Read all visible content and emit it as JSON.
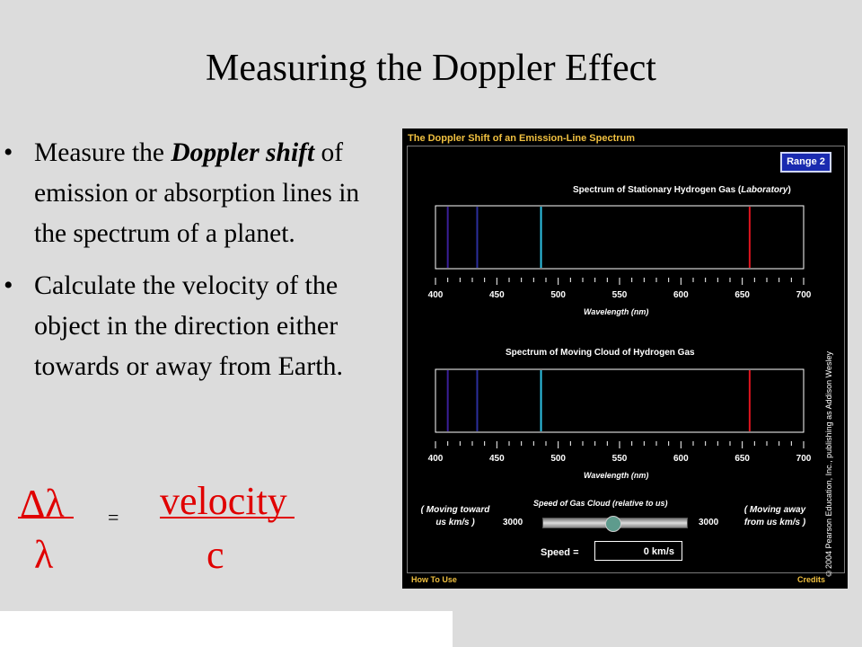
{
  "slide": {
    "title": "Measuring the Doppler Effect",
    "bullet_char": "•",
    "bullet1_pre": "Measure the ",
    "bullet1_emph": "Doppler shift",
    "bullet1_post": " of emission or absorption lines in the spectrum of a planet.",
    "bullet2": "Calculate the velocity of the object in the direction either towards or away from Earth.",
    "formula": {
      "numerator_left": "Δλ",
      "denominator_left": "λ",
      "equals": "=",
      "numerator_right": "velocity",
      "denominator_right": "c"
    }
  },
  "simulation": {
    "title": "The Doppler Shift of an Emission-Line Spectrum",
    "range_button": "Range 2",
    "lab_spectrum_label_pre": "Spectrum of Stationary Hydrogen Gas (",
    "lab_spectrum_label_emph": "Laboratory",
    "lab_spectrum_label_post": ")",
    "moving_spectrum_label": "Spectrum of Moving Cloud of Hydrogen Gas",
    "tick_labels": [
      "400",
      "450",
      "500",
      "550",
      "600",
      "650",
      "700"
    ],
    "axis_label": "Wavelength (nm)",
    "emission_lines_nm": [
      410,
      434,
      486,
      656
    ],
    "line_colors": [
      "#3a1f9a",
      "#2b2f9c",
      "#2ec4e6",
      "#e0141e"
    ],
    "speed_title": "Speed of Gas Cloud (relative to us)",
    "left_note": "( Moving toward us km/s )",
    "right_note": "( Moving away from us km/s )",
    "slider_min_label": "3000",
    "slider_max_label": "3000",
    "slider_value": 0,
    "speed_label": "Speed =",
    "speed_value": "0 km/s",
    "how_to_use": "How To Use",
    "credits": "Credits",
    "copyright": "©2004 Pearson Education, Inc., publishing as Addison Wesley"
  }
}
